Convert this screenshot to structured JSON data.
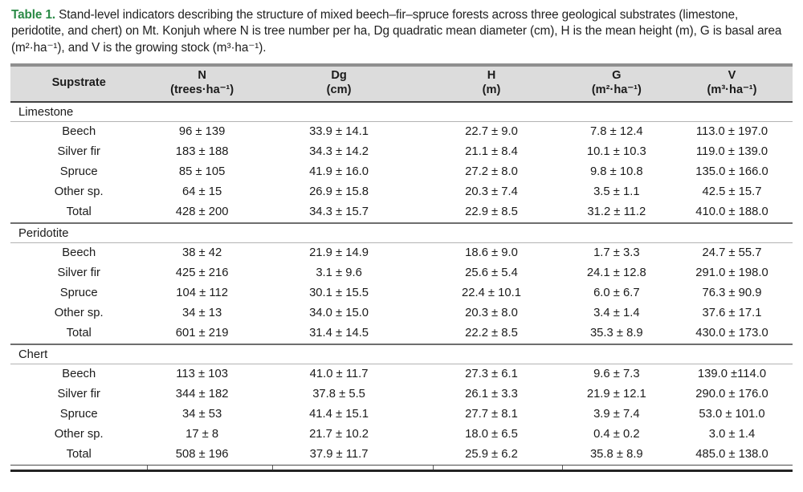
{
  "caption": {
    "label": "Table 1.",
    "text": " Stand-level indicators describing the structure of mixed beech–fir–spruce forests across three geological substrates (limestone, peridotite, and chert) on Mt. Konjuh where N is tree number per ha, Dg quadratic mean diameter (cm), H is the mean height (m), G is basal area (m²·ha⁻¹), and V is the growing stock (m³·ha⁻¹)."
  },
  "colors": {
    "caption_label_green": "#2a8a46",
    "header_background": "#dcdcdc",
    "text": "#1b1b1b"
  },
  "table": {
    "columns": [
      {
        "title": "Supstrate",
        "unit": ""
      },
      {
        "title": "N",
        "unit": "(trees·ha⁻¹)"
      },
      {
        "title": "Dg",
        "unit": "(cm)"
      },
      {
        "title": "H",
        "unit": "(m)"
      },
      {
        "title": "G",
        "unit": "(m²·ha⁻¹)"
      },
      {
        "title": "V",
        "unit": "(m³·ha⁻¹)"
      }
    ],
    "column_widths_percent": [
      17.5,
      14,
      21,
      18,
      14,
      15.5
    ],
    "sections": [
      {
        "name": "Limestone",
        "rows": [
          [
            "Beech",
            "96 ± 139",
            "33.9 ± 14.1",
            "22.7 ± 9.0",
            "7.8 ± 12.4",
            "113.0 ± 197.0"
          ],
          [
            "Silver fir",
            "183 ± 188",
            "34.3 ± 14.2",
            "21.1 ± 8.4",
            "10.1 ± 10.3",
            "119.0 ± 139.0"
          ],
          [
            "Spruce",
            "85 ± 105",
            "41.9 ± 16.0",
            "27.2 ± 8.0",
            "9.8 ± 10.8",
            "135.0 ± 166.0"
          ],
          [
            "Other sp.",
            "64 ± 15",
            "26.9 ± 15.8",
            "20.3 ± 7.4",
            "3.5 ± 1.1",
            "42.5 ± 15.7"
          ],
          [
            "Total",
            "428 ± 200",
            "34.3 ± 15.7",
            "22.9 ± 8.5",
            "31.2 ± 11.2",
            "410.0 ± 188.0"
          ]
        ]
      },
      {
        "name": "Peridotite",
        "rows": [
          [
            "Beech",
            "38 ± 42",
            "21.9 ± 14.9",
            "18.6 ± 9.0",
            "1.7 ± 3.3",
            "24.7 ± 55.7"
          ],
          [
            "Silver fir",
            "425 ± 216",
            "3.1 ± 9.6",
            "25.6 ± 5.4",
            "24.1 ± 12.8",
            "291.0 ± 198.0"
          ],
          [
            "Spruce",
            "104 ± 112",
            "30.1 ± 15.5",
            "22.4 ± 10.1",
            "6.0 ± 6.7",
            "76.3 ± 90.9"
          ],
          [
            "Other sp.",
            "34 ± 13",
            "34.0 ± 15.0",
            "20.3 ± 8.0",
            "3.4 ± 1.4",
            "37.6 ± 17.1"
          ],
          [
            "Total",
            "601 ± 219",
            "31.4 ± 14.5",
            "22.2 ± 8.5",
            "35.3 ± 8.9",
            "430.0 ± 173.0"
          ]
        ]
      },
      {
        "name": "Chert",
        "rows": [
          [
            "Beech",
            "113 ± 103",
            "41.0 ± 11.7",
            "27.3 ± 6.1",
            "9.6 ± 7.3",
            "139.0 ±114.0"
          ],
          [
            "Silver fir",
            "344 ± 182",
            "37.8 ± 5.5",
            "26.1 ± 3.3",
            "21.9 ± 12.1",
            "290.0 ± 176.0"
          ],
          [
            "Spruce",
            "34 ± 53",
            "41.4 ± 15.1",
            "27.7 ± 8.1",
            "3.9 ± 7.4",
            "53.0 ± 101.0"
          ],
          [
            "Other sp.",
            "17 ± 8",
            "21.7 ± 10.2",
            "18.0 ± 6.5",
            "0.4 ± 0.2",
            "3.0 ± 1.4"
          ],
          [
            "Total",
            "508 ± 196",
            "37.9 ± 11.7",
            "25.9 ± 6.2",
            "35.8 ± 8.9",
            "485.0 ± 138.0"
          ]
        ]
      }
    ]
  }
}
